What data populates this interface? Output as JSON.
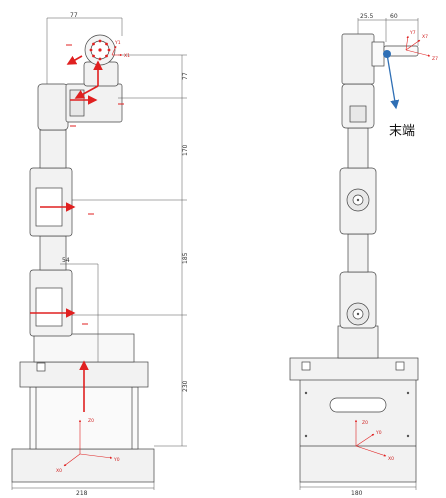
{
  "left_view": {
    "dimensions": {
      "top_width": "77",
      "d1": "77",
      "d2": "170",
      "d3": "185",
      "d4": "54",
      "d5": "230",
      "base_width": "218"
    },
    "axes": {
      "x1": "X1",
      "y1": "Y1",
      "x0": "X0",
      "y0": "Y0",
      "z0": "Z0"
    }
  },
  "right_view": {
    "dimensions": {
      "offset_a": "25.5",
      "offset_b": "60",
      "base_width": "180"
    },
    "axes": {
      "x7": "X7",
      "y7": "Y7",
      "z7": "Z7",
      "x0": "X0",
      "y0": "Y0",
      "z0": "Z0"
    },
    "end_label": "末端"
  },
  "colors": {
    "line": "#444444",
    "fill": "#f2f2f2",
    "axis": "#e02020",
    "arrow_blue": "#2f6fb5"
  }
}
